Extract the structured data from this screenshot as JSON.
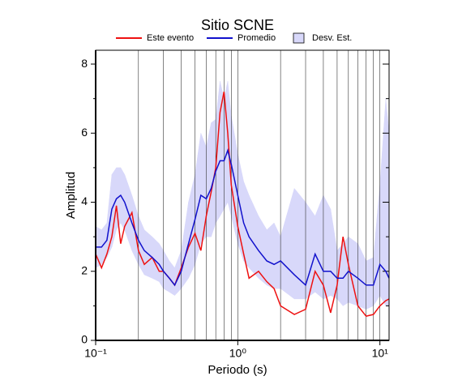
{
  "chart_data": {
    "type": "line",
    "title": "Sitio SCNE",
    "x_label": "Periodo (s)",
    "y_label": "Amplitud",
    "log_x": true,
    "xlim": [
      0.1,
      11.6
    ],
    "ylim": [
      0,
      8.4
    ],
    "xticks": [
      {
        "value": 0.1,
        "label": "10⁻¹"
      },
      {
        "value": 1,
        "label": "10⁰"
      },
      {
        "value": 10,
        "label": "10¹"
      }
    ],
    "yticks": [
      0,
      2,
      4,
      6,
      8
    ],
    "yminor": [
      1,
      3,
      5,
      7
    ],
    "xgrid": [
      0.2,
      0.3,
      0.4,
      0.5,
      0.6,
      0.7,
      0.8,
      0.9,
      2,
      3,
      4,
      5,
      6,
      7,
      8,
      9
    ],
    "x": [
      0.1,
      0.11,
      0.12,
      0.13,
      0.14,
      0.15,
      0.16,
      0.18,
      0.2,
      0.22,
      0.25,
      0.28,
      0.3,
      0.33,
      0.36,
      0.4,
      0.45,
      0.5,
      0.55,
      0.6,
      0.65,
      0.7,
      0.75,
      0.8,
      0.85,
      0.9,
      1.0,
      1.1,
      1.2,
      1.4,
      1.6,
      1.8,
      2.0,
      2.5,
      3.0,
      3.5,
      4.0,
      4.5,
      5.0,
      5.5,
      6.0,
      7.0,
      8.0,
      9.0,
      10,
      11,
      11.6
    ],
    "band": {
      "name": "Desv. Est.",
      "color": "#d8d8fa",
      "upper": [
        3.3,
        3.2,
        3.4,
        4.8,
        5.0,
        5.0,
        4.8,
        4.2,
        3.6,
        3.2,
        3.0,
        2.8,
        2.6,
        2.3,
        2.1,
        2.6,
        4.0,
        4.8,
        6.0,
        5.6,
        6.3,
        6.4,
        7.5,
        7.0,
        7.5,
        6.5,
        5.4,
        4.6,
        4.2,
        3.6,
        3.2,
        3.4,
        3.0,
        4.4,
        4.0,
        3.6,
        4.2,
        3.8,
        2.6,
        2.8,
        3.0,
        2.8,
        2.3,
        2.4,
        4.5,
        7.0,
        6.0
      ],
      "lower": [
        2.1,
        2.2,
        2.4,
        2.7,
        3.2,
        3.4,
        3.2,
        2.6,
        2.2,
        1.9,
        1.8,
        1.7,
        1.5,
        1.4,
        1.3,
        1.5,
        1.8,
        2.2,
        2.8,
        3.0,
        3.0,
        3.4,
        3.6,
        3.8,
        4.0,
        3.6,
        2.8,
        2.3,
        2.1,
        1.8,
        1.6,
        1.5,
        1.5,
        1.2,
        1.2,
        1.4,
        1.2,
        1.3,
        1.2,
        1.0,
        1.1,
        1.0,
        0.9,
        1.0,
        1.3,
        1.0,
        1.0
      ]
    },
    "series": [
      {
        "name": "Este evento",
        "color": "#ee1111",
        "values": [
          2.5,
          2.1,
          2.5,
          3.0,
          3.9,
          2.8,
          3.3,
          3.7,
          2.6,
          2.2,
          2.4,
          2.0,
          2.0,
          1.8,
          1.6,
          2.1,
          2.7,
          3.1,
          2.6,
          3.6,
          4.3,
          5.0,
          6.6,
          7.2,
          6.0,
          4.5,
          3.3,
          2.5,
          1.8,
          2.0,
          1.7,
          1.5,
          1.0,
          0.75,
          0.9,
          2.0,
          1.6,
          0.8,
          1.6,
          3.0,
          2.2,
          1.0,
          0.7,
          0.75,
          1.0,
          1.15,
          1.2
        ]
      },
      {
        "name": "Promedio",
        "color": "#1111cc",
        "values": [
          2.7,
          2.7,
          2.9,
          3.8,
          4.1,
          4.2,
          4.0,
          3.4,
          2.9,
          2.6,
          2.4,
          2.2,
          2.0,
          1.8,
          1.6,
          2.0,
          2.8,
          3.5,
          4.2,
          4.1,
          4.4,
          4.9,
          5.2,
          5.2,
          5.5,
          5.1,
          4.2,
          3.4,
          3.0,
          2.6,
          2.3,
          2.2,
          2.3,
          1.9,
          1.6,
          2.5,
          2.0,
          2.0,
          1.8,
          1.8,
          2.0,
          1.8,
          1.6,
          1.6,
          2.2,
          2.0,
          1.8
        ]
      }
    ]
  }
}
